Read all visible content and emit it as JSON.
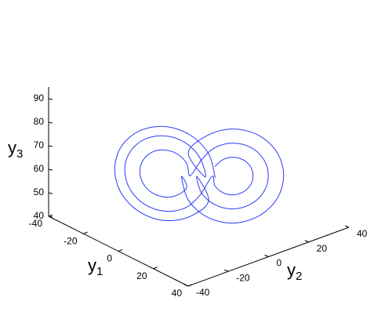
{
  "chart_data": {
    "type": "line3d",
    "xlabel": {
      "text": "y",
      "subscript": "1"
    },
    "ylabel": {
      "text": "y",
      "subscript": "2"
    },
    "zlabel": {
      "text": "y",
      "subscript": "3"
    },
    "xlim": [
      -40,
      40
    ],
    "ylim": [
      -40,
      40
    ],
    "zlim": [
      40,
      95
    ],
    "xticks": [
      -40,
      -20,
      0,
      20,
      40
    ],
    "yticks": [
      -40,
      -20,
      0,
      20,
      40
    ],
    "zticks": [
      40,
      50,
      60,
      70,
      80,
      90
    ],
    "series": [
      {
        "color": "#2b3cf2",
        "x": [
          6,
          4,
          -1.5,
          -9,
          -16.5,
          -22,
          -24,
          -22,
          -16.5,
          -9,
          -1.5,
          4,
          0.6,
          1.7,
          4.8,
          9,
          13.2,
          16.3,
          17.4,
          16.3,
          13.2,
          9,
          4.8,
          1.7,
          -1.5,
          -2.5,
          -5.3,
          -9,
          -12.8,
          -15.5,
          -16.5,
          -15.5,
          -12.8,
          -9,
          -5.3,
          -2.5,
          -3,
          -1.4,
          3,
          9,
          15,
          19.4,
          21,
          19.4,
          15,
          9,
          3,
          -1.4,
          3,
          1.4,
          -3,
          -9,
          -15,
          -19.4,
          -21,
          -19.4,
          -15,
          -9,
          -3,
          1.4,
          4.2,
          4.8,
          6.6,
          9,
          11.4,
          13.2,
          13.8,
          13.2,
          11.4,
          9,
          6.6,
          4.8
        ],
        "y": [
          3,
          1.4,
          -3,
          -9,
          -15,
          -19.4,
          -21,
          -19.4,
          -15,
          -9,
          -3,
          1.4,
          -1.5,
          -0.1,
          3.8,
          9,
          14.3,
          18.1,
          19.5,
          18.1,
          14.3,
          9,
          3.8,
          -0.1,
          -3,
          -3.8,
          -6,
          -9,
          -12,
          -14.2,
          -15,
          -14.2,
          -12,
          -9,
          -6,
          -3.8,
          -6,
          -4,
          1.5,
          9,
          16.5,
          22,
          24,
          22,
          16.5,
          9,
          1.5,
          -4,
          0.6,
          -0.7,
          -4.2,
          -9,
          -13.8,
          -17.3,
          -18.6,
          -17.3,
          -13.8,
          -9,
          -4.2,
          -0.7,
          3,
          3.8,
          6,
          9,
          12,
          14.2,
          15,
          14.2,
          12,
          9,
          6,
          3.8
        ],
        "z": [
          60,
          70,
          77.3,
          80,
          77.3,
          70,
          60,
          50,
          42.7,
          40,
          42.7,
          50,
          60,
          53,
          47.9,
          46,
          47.9,
          53,
          60,
          67,
          72.1,
          74,
          72.1,
          67,
          60,
          65,
          68.7,
          70,
          68.7,
          65,
          60,
          55,
          51.3,
          50,
          51.3,
          55,
          60,
          50,
          42.7,
          40,
          42.7,
          50,
          60,
          70,
          77.3,
          80,
          77.3,
          70,
          60,
          68,
          73.9,
          76,
          73.9,
          68,
          60,
          52,
          46.1,
          44,
          46.1,
          52,
          60,
          56,
          53.1,
          52,
          53.1,
          56,
          60,
          64,
          66.9,
          68,
          66.9,
          64
        ]
      }
    ]
  }
}
